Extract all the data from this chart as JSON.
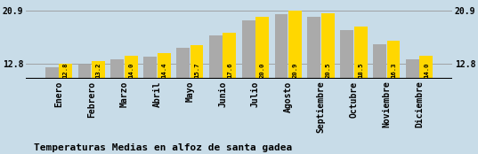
{
  "categories": [
    "Enero",
    "Febrero",
    "Marzo",
    "Abril",
    "Mayo",
    "Junio",
    "Julio",
    "Agosto",
    "Septiembre",
    "Octubre",
    "Noviembre",
    "Diciembre"
  ],
  "values": [
    12.8,
    13.2,
    14.0,
    14.4,
    15.7,
    17.6,
    20.0,
    20.9,
    20.5,
    18.5,
    16.3,
    14.0
  ],
  "gray_values": [
    12.3,
    12.7,
    13.5,
    13.9,
    15.2,
    17.1,
    19.5,
    20.4,
    20.0,
    18.0,
    15.8,
    13.5
  ],
  "bar_color_yellow": "#FFD700",
  "bar_color_gray": "#AAAAAA",
  "background_color": "#C8DCE8",
  "title": "Temperaturas Medias en alfoz de santa gadea",
  "ylim_min": 10.5,
  "ylim_max": 22.2,
  "yticks": [
    12.8,
    20.9
  ],
  "hline_y1": 20.9,
  "hline_y2": 12.8,
  "title_fontsize": 8,
  "label_fontsize": 5.2,
  "tick_fontsize": 7,
  "bar_width": 0.4,
  "bar_gap": 0.02
}
